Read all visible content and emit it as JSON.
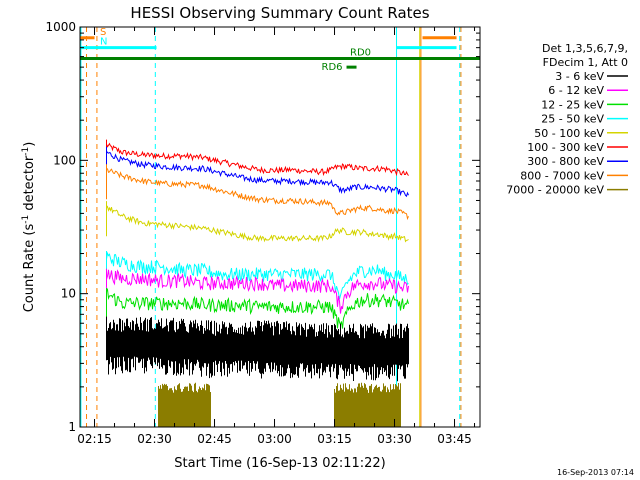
{
  "chart_data": {
    "type": "line",
    "title": "HESSI Observing Summary Count Rates",
    "xlabel": "Start Time (16-Sep-13 02:11:22)",
    "ylabel_prefix": "Count Rate (s",
    "ylabel_sup1": "-1",
    "ylabel_mid": " detector",
    "ylabel_sup2": "-1",
    "ylabel_suffix": ")",
    "footer": "16-Sep-2013 07:14",
    "x_ticks": [
      "02:15",
      "02:30",
      "02:45",
      "03:00",
      "03:15",
      "03:30",
      "03:45"
    ],
    "x_tick_minutes": [
      15,
      30,
      45,
      60,
      75,
      90,
      105
    ],
    "xlim_minutes": [
      11.37,
      111.37
    ],
    "y_ticks": [
      "1",
      "10",
      "100",
      "1000"
    ],
    "y_tick_values": [
      1,
      10,
      100,
      1000
    ],
    "ylim": [
      1,
      1000
    ],
    "y_scale": "log",
    "legend_header": [
      "Det 1,3,5,6,7,9,",
      "FDecim 1, Att 0"
    ],
    "legend": [
      {
        "label": "3 - 6 keV",
        "color": "#000000"
      },
      {
        "label": "6 - 12 keV",
        "color": "#ff00ff"
      },
      {
        "label": "12 - 25 keV",
        "color": "#00e000"
      },
      {
        "label": "25 - 50 keV",
        "color": "#00ffff"
      },
      {
        "label": "50 - 100 keV",
        "color": "#d4d400"
      },
      {
        "label": "100 - 300 keV",
        "color": "#ff0000"
      },
      {
        "label": "300 - 800 keV",
        "color": "#0000ff"
      },
      {
        "label": "800 - 7000 keV",
        "color": "#ff8000"
      },
      {
        "label": "7000 - 20000 keV",
        "color": "#8b7d00"
      }
    ],
    "series": [
      {
        "color": "#ff0000",
        "data_start_min": 18.0,
        "data_end_min": 93.5,
        "points": [
          [
            18,
            130
          ],
          [
            22,
            115
          ],
          [
            27,
            110
          ],
          [
            32,
            108
          ],
          [
            37,
            108
          ],
          [
            42,
            105
          ],
          [
            47,
            97
          ],
          [
            52,
            90
          ],
          [
            56,
            85
          ],
          [
            60,
            84
          ],
          [
            64,
            85
          ],
          [
            68,
            83
          ],
          [
            72,
            82
          ],
          [
            74,
            84
          ],
          [
            75,
            88
          ],
          [
            76.5,
            90
          ],
          [
            78,
            90
          ],
          [
            80,
            88
          ],
          [
            82,
            87
          ],
          [
            84,
            87
          ],
          [
            86,
            87
          ],
          [
            88,
            86
          ],
          [
            90,
            83
          ],
          [
            92,
            80
          ],
          [
            93.5,
            77
          ]
        ]
      },
      {
        "color": "#0000ff",
        "data_start_min": 18.0,
        "data_end_min": 93.5,
        "points": [
          [
            18,
            115
          ],
          [
            22,
            100
          ],
          [
            27,
            93
          ],
          [
            32,
            90
          ],
          [
            37,
            88
          ],
          [
            42,
            87
          ],
          [
            47,
            80
          ],
          [
            52,
            74
          ],
          [
            56,
            71
          ],
          [
            60,
            70
          ],
          [
            64,
            70
          ],
          [
            68,
            69
          ],
          [
            72,
            68
          ],
          [
            74,
            69
          ],
          [
            75,
            65
          ],
          [
            76.5,
            60
          ],
          [
            78,
            60
          ],
          [
            80,
            63
          ],
          [
            82,
            63
          ],
          [
            84,
            63
          ],
          [
            86,
            62
          ],
          [
            88,
            61
          ],
          [
            90,
            60
          ],
          [
            92,
            57
          ],
          [
            93.5,
            54
          ]
        ]
      },
      {
        "color": "#ff8000",
        "data_start_min": 18.0,
        "data_end_min": 93.5,
        "points": [
          [
            18,
            85
          ],
          [
            22,
            76
          ],
          [
            27,
            70
          ],
          [
            32,
            67
          ],
          [
            37,
            66
          ],
          [
            42,
            65
          ],
          [
            47,
            59
          ],
          [
            52,
            54
          ],
          [
            56,
            51
          ],
          [
            60,
            50
          ],
          [
            64,
            50
          ],
          [
            68,
            49
          ],
          [
            72,
            48
          ],
          [
            74,
            48
          ],
          [
            75,
            42
          ],
          [
            76.5,
            40
          ],
          [
            78,
            41
          ],
          [
            80,
            43
          ],
          [
            82,
            44
          ],
          [
            84,
            44
          ],
          [
            86,
            43
          ],
          [
            88,
            42
          ],
          [
            90,
            42
          ],
          [
            92,
            40
          ],
          [
            93.5,
            38
          ]
        ]
      },
      {
        "color": "#d4d400",
        "data_start_min": 18.0,
        "data_end_min": 93.5,
        "points": [
          [
            18,
            45
          ],
          [
            22,
            38
          ],
          [
            27,
            34
          ],
          [
            32,
            33
          ],
          [
            37,
            32
          ],
          [
            42,
            31
          ],
          [
            47,
            29
          ],
          [
            52,
            27
          ],
          [
            56,
            26
          ],
          [
            60,
            26
          ],
          [
            64,
            26
          ],
          [
            68,
            26
          ],
          [
            72,
            26
          ],
          [
            74,
            27
          ],
          [
            75,
            29
          ],
          [
            76.5,
            30
          ],
          [
            78,
            29
          ],
          [
            80,
            29
          ],
          [
            82,
            29
          ],
          [
            84,
            28
          ],
          [
            86,
            28
          ],
          [
            88,
            27
          ],
          [
            90,
            27
          ],
          [
            92,
            26
          ],
          [
            93.5,
            25
          ]
        ]
      },
      {
        "color": "#00ffff",
        "data_start_min": 18.0,
        "data_end_min": 93.5,
        "points": [
          [
            18,
            19
          ],
          [
            22,
            17
          ],
          [
            27,
            16
          ],
          [
            32,
            16
          ],
          [
            37,
            15
          ],
          [
            42,
            15
          ],
          [
            47,
            14
          ],
          [
            52,
            14
          ],
          [
            56,
            14
          ],
          [
            60,
            14
          ],
          [
            64,
            14
          ],
          [
            68,
            14
          ],
          [
            72,
            14
          ],
          [
            74,
            14
          ],
          [
            75,
            12
          ],
          [
            76.5,
            9
          ],
          [
            78,
            12
          ],
          [
            80,
            14
          ],
          [
            82,
            15
          ],
          [
            84,
            15
          ],
          [
            86,
            15
          ],
          [
            88,
            14
          ],
          [
            90,
            14
          ],
          [
            92,
            13
          ],
          [
            93.5,
            13
          ]
        ]
      },
      {
        "color": "#ff00ff",
        "data_start_min": 18.0,
        "data_end_min": 93.5,
        "points": [
          [
            18,
            14
          ],
          [
            22,
            13
          ],
          [
            27,
            13
          ],
          [
            32,
            12.5
          ],
          [
            37,
            12.5
          ],
          [
            42,
            12
          ],
          [
            47,
            12
          ],
          [
            52,
            12
          ],
          [
            56,
            12
          ],
          [
            60,
            11.5
          ],
          [
            64,
            11.5
          ],
          [
            68,
            11.5
          ],
          [
            72,
            11.5
          ],
          [
            74,
            11.5
          ],
          [
            75,
            10
          ],
          [
            76.5,
            8
          ],
          [
            78,
            10
          ],
          [
            80,
            11.5
          ],
          [
            82,
            12
          ],
          [
            84,
            12
          ],
          [
            86,
            12
          ],
          [
            88,
            11.5
          ],
          [
            90,
            11.5
          ],
          [
            92,
            11
          ],
          [
            93.5,
            11
          ]
        ]
      },
      {
        "color": "#00e000",
        "data_start_min": 18.0,
        "data_end_min": 93.5,
        "points": [
          [
            18,
            10
          ],
          [
            22,
            8.5
          ],
          [
            27,
            8.5
          ],
          [
            32,
            8.5
          ],
          [
            37,
            8.5
          ],
          [
            42,
            8.3
          ],
          [
            47,
            8.2
          ],
          [
            52,
            8.2
          ],
          [
            56,
            8
          ],
          [
            60,
            8
          ],
          [
            64,
            8
          ],
          [
            68,
            8
          ],
          [
            72,
            8
          ],
          [
            74,
            8
          ],
          [
            75,
            7
          ],
          [
            76.5,
            5.5
          ],
          [
            78,
            7
          ],
          [
            80,
            8.5
          ],
          [
            82,
            9
          ],
          [
            84,
            9
          ],
          [
            86,
            9
          ],
          [
            88,
            8.8
          ],
          [
            90,
            8.5
          ],
          [
            92,
            8.3
          ],
          [
            93.5,
            8
          ]
        ]
      },
      {
        "color": "#000000",
        "data_start_min": 18.0,
        "data_end_min": 93.5,
        "points": [
          [
            18,
            4.5
          ],
          [
            30,
            4.5
          ],
          [
            45,
            4.2
          ],
          [
            60,
            4.2
          ],
          [
            75,
            4
          ],
          [
            90,
            4
          ],
          [
            93.5,
            4
          ]
        ]
      },
      {
        "color": "#8b7d00",
        "data_start_min": 31.0,
        "data_end_min": 91.5,
        "points": [
          [
            31,
            1.8
          ],
          [
            44,
            1.8
          ],
          [
            75,
            1.8
          ],
          [
            91.5,
            1.8
          ]
        ]
      }
    ],
    "status_bars": [
      {
        "label": "S",
        "color": "#ff8000",
        "start_min": 11.37,
        "end_min": 15.0,
        "value": 830
      },
      {
        "label": "",
        "color": "#ff8000",
        "start_min": 97.0,
        "end_min": 105.5,
        "value": 830
      },
      {
        "label": "N",
        "color": "#00ffff",
        "start_min": 11.37,
        "end_min": 30.5,
        "value": 700
      },
      {
        "label": "",
        "color": "#00ffff",
        "start_min": 90.5,
        "end_min": 105.5,
        "value": 700
      },
      {
        "label": "RD0",
        "color": "#008000",
        "start_min": 11.37,
        "end_min": 111.37,
        "value": 580
      },
      {
        "label": "RD6",
        "color": "#008000",
        "start_min": 78.0,
        "end_min": 80.5,
        "value": 500
      }
    ],
    "vlines": [
      {
        "color": "#00ffff",
        "minute": 11.6,
        "dash": false
      },
      {
        "color": "#ff8000",
        "minute": 13.0,
        "dash": true
      },
      {
        "color": "#ff8000",
        "minute": 15.6,
        "dash": true
      },
      {
        "color": "#00ffff",
        "minute": 30.2,
        "dash": true
      },
      {
        "color": "#00ffff",
        "minute": 90.5,
        "dash": false
      },
      {
        "color": "#d4d400",
        "minute": 96.3,
        "dash": false
      },
      {
        "color": "#ff8000",
        "minute": 96.6,
        "dash": false
      },
      {
        "color": "#00ffff",
        "minute": 106.3,
        "dash": true
      },
      {
        "color": "#ff8000",
        "minute": 106.6,
        "dash": true
      }
    ]
  }
}
